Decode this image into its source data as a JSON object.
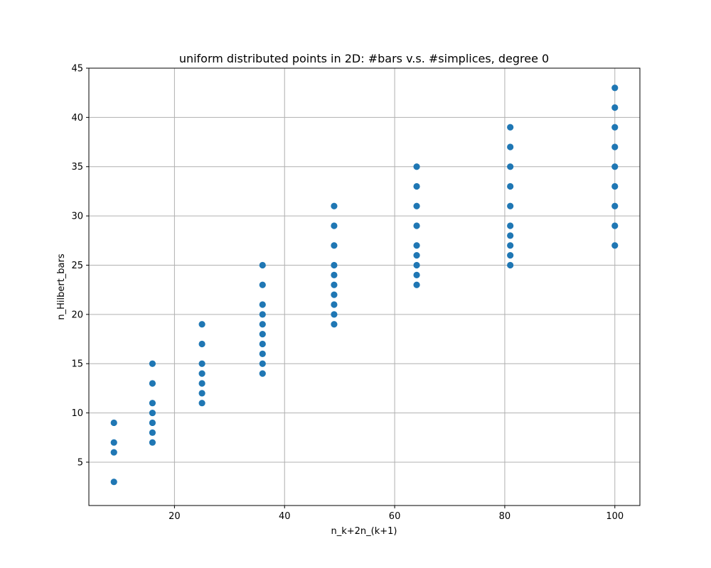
{
  "chart_data": {
    "type": "scatter",
    "title": "uniform distributed points in 2D: #bars v.s. #simplices, degree 0",
    "xlabel": "n_k+2n_(k+1)",
    "ylabel": "n_Hilbert_bars",
    "xlim": [
      4.45,
      104.55
    ],
    "ylim": [
      0.6,
      45
    ],
    "xticks": [
      20,
      40,
      60,
      80,
      100
    ],
    "yticks": [
      5,
      10,
      15,
      20,
      25,
      30,
      35,
      40,
      45
    ],
    "grid": true,
    "marker_color": "#1f77b4",
    "points": [
      {
        "x": 9,
        "ys": [
          3,
          6,
          7,
          9
        ]
      },
      {
        "x": 16,
        "ys": [
          7,
          8,
          9,
          10,
          11,
          13,
          15
        ]
      },
      {
        "x": 25,
        "ys": [
          11,
          12,
          13,
          14,
          15,
          17,
          19
        ]
      },
      {
        "x": 36,
        "ys": [
          14,
          15,
          16,
          17,
          18,
          19,
          20,
          21,
          23,
          25
        ]
      },
      {
        "x": 49,
        "ys": [
          19,
          20,
          21,
          22,
          23,
          24,
          25,
          27,
          29,
          31
        ]
      },
      {
        "x": 64,
        "ys": [
          23,
          24,
          25,
          26,
          27,
          29,
          31,
          33,
          35
        ]
      },
      {
        "x": 81,
        "ys": [
          25,
          26,
          27,
          28,
          29,
          31,
          33,
          35,
          37,
          39
        ]
      },
      {
        "x": 100,
        "ys": [
          27,
          29,
          31,
          33,
          35,
          37,
          39,
          41,
          43
        ]
      }
    ]
  }
}
